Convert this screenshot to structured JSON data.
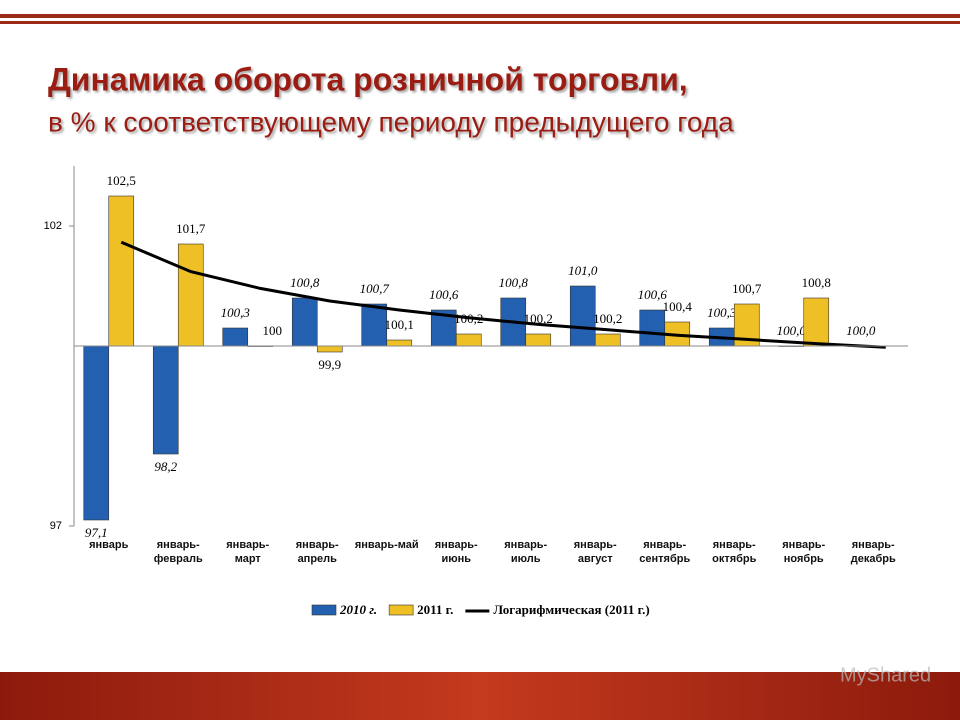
{
  "chart_data": {
    "type": "bar",
    "title": "Динамика оборота розничной торговли,",
    "subtitle": "в % к соответствующему периоду предыдущего года",
    "categories": [
      "январь",
      "январь-февраль",
      "январь-март",
      "январь-апрель",
      "январь-май",
      "январь-июнь",
      "январь-июль",
      "январь-август",
      "январь-сентябрь",
      "январь-октябрь",
      "январь-ноябрь",
      "январь-декабрь"
    ],
    "series": [
      {
        "name": "2010 г.",
        "color": "#2360b0",
        "values": [
          97.1,
          98.2,
          100.3,
          100.8,
          100.7,
          100.6,
          100.8,
          101.0,
          100.6,
          100.3,
          100.0,
          100.0
        ],
        "value_labels": [
          "97,1",
          "98,2",
          "100,3",
          "100,8",
          "100,7",
          "100,6",
          "100,8",
          "101,0",
          "100,6",
          "100,3",
          "100,0",
          "100,0"
        ]
      },
      {
        "name": "2011 г.",
        "color": "#efbf26",
        "values": [
          102.5,
          101.7,
          100,
          99.9,
          100.1,
          100.2,
          100.2,
          100.2,
          100.4,
          100.7,
          100.8,
          null
        ],
        "value_labels": [
          "102,5",
          "101,7",
          "100",
          "99,9",
          "100,1",
          "100,2",
          "100,2",
          "100,2",
          "100,4",
          "100,7",
          "100,8",
          null
        ]
      },
      {
        "name": "Логарифмическая (2011 г.)",
        "type": "line",
        "color": "#000000",
        "values": [
          101.73,
          101.24,
          100.96,
          100.75,
          100.6,
          100.47,
          100.36,
          100.27,
          100.18,
          100.11,
          100.04,
          99.98
        ]
      }
    ],
    "ylim": [
      97,
      103
    ],
    "yticks": [
      97,
      102
    ],
    "x_axis_at": 100
  },
  "watermark": "MyShared"
}
